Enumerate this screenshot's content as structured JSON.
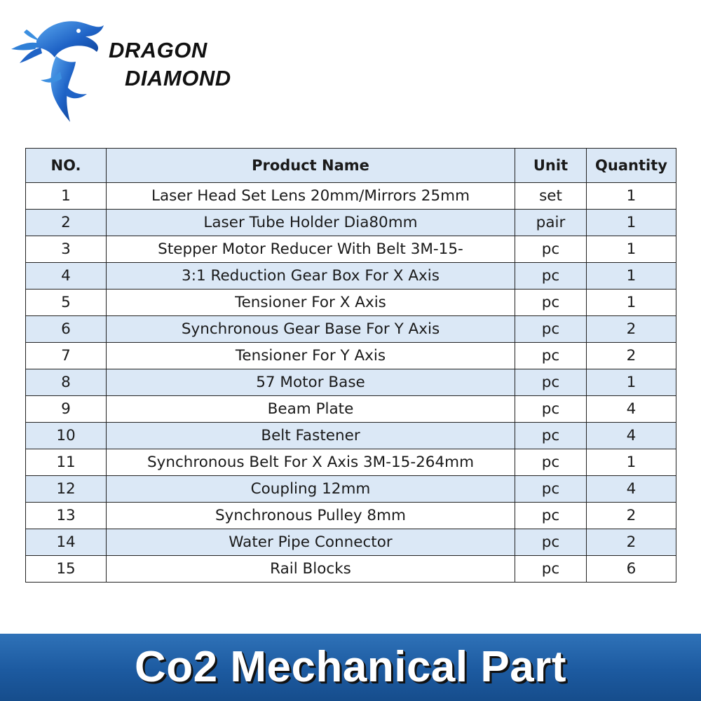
{
  "brand": {
    "line1": "DRAGON",
    "line2": "DIAMOND",
    "logo_icon": "dragon-logo-icon",
    "logo_color": "#1f63c6"
  },
  "table": {
    "headers": {
      "no": "NO.",
      "product": "Product Name",
      "unit": "Unit",
      "quantity": "Quantity"
    },
    "header_bg": "#dbe8f6",
    "stripe_bg": "#dbe8f6",
    "rows": [
      {
        "no": "1",
        "product": "Laser Head Set Lens 20mm/Mirrors 25mm",
        "unit": "set",
        "quantity": "1"
      },
      {
        "no": "2",
        "product": "Laser Tube Holder Dia80mm",
        "unit": "pair",
        "quantity": "1"
      },
      {
        "no": "3",
        "product": "Stepper Motor Reducer With Belt 3M-15-",
        "unit": "pc",
        "quantity": "1"
      },
      {
        "no": "4",
        "product": "3:1 Reduction Gear Box For X Axis",
        "unit": "pc",
        "quantity": "1"
      },
      {
        "no": "5",
        "product": "Tensioner For X Axis",
        "unit": "pc",
        "quantity": "1"
      },
      {
        "no": "6",
        "product": "Synchronous Gear Base For Y Axis",
        "unit": "pc",
        "quantity": "2"
      },
      {
        "no": "7",
        "product": "Tensioner For Y Axis",
        "unit": "pc",
        "quantity": "2"
      },
      {
        "no": "8",
        "product": "57 Motor Base",
        "unit": "pc",
        "quantity": "1"
      },
      {
        "no": "9",
        "product": "Beam Plate",
        "unit": "pc",
        "quantity": "4"
      },
      {
        "no": "10",
        "product": "Belt Fastener",
        "unit": "pc",
        "quantity": "4"
      },
      {
        "no": "11",
        "product": "Synchronous Belt For X Axis 3M-15-264mm",
        "unit": "pc",
        "quantity": "1"
      },
      {
        "no": "12",
        "product": "Coupling 12mm",
        "unit": "pc",
        "quantity": "4"
      },
      {
        "no": "13",
        "product": "Synchronous Pulley 8mm",
        "unit": "pc",
        "quantity": "2"
      },
      {
        "no": "14",
        "product": "Water Pipe Connector",
        "unit": "pc",
        "quantity": "2"
      },
      {
        "no": "15",
        "product": "Rail Blocks",
        "unit": "pc",
        "quantity": "6"
      }
    ]
  },
  "banner": {
    "title": "Co2 Mechanical Part",
    "color": "#1c5aa0"
  }
}
